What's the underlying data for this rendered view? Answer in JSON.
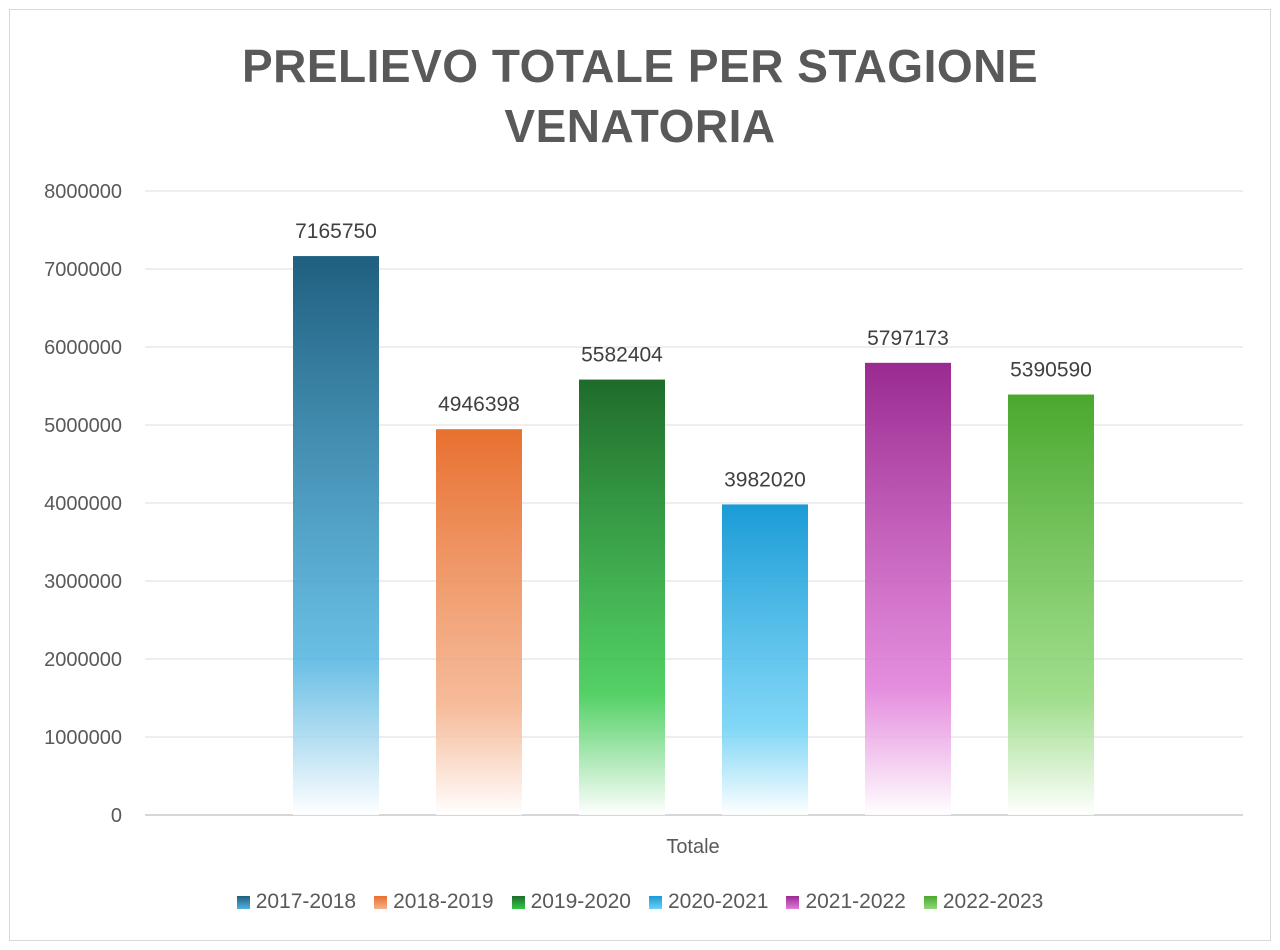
{
  "chart_data": {
    "type": "bar",
    "title": "PRELIEVO TOTALE PER STAGIONE VENATORIA",
    "title_lines": [
      "PRELIEVO TOTALE PER STAGIONE",
      "VENATORIA"
    ],
    "categories": [
      "Totale"
    ],
    "xlabel": "Totale",
    "ylabel": "",
    "ylim": [
      0,
      8000000
    ],
    "yticks": [
      0,
      1000000,
      2000000,
      3000000,
      4000000,
      5000000,
      6000000,
      7000000,
      8000000
    ],
    "ytick_labels": [
      "0",
      "1000000",
      "2000000",
      "3000000",
      "4000000",
      "5000000",
      "6000000",
      "7000000",
      "8000000"
    ],
    "grid": true,
    "legend_position": "bottom",
    "series": [
      {
        "name": "2017-2018",
        "values": [
          7165750
        ],
        "label": "7165750",
        "color": "#1f5f7f",
        "color_bottom": "#4fb3e0"
      },
      {
        "name": "2018-2019",
        "values": [
          4946398
        ],
        "label": "4946398",
        "color": "#e8702f",
        "color_bottom": "#f5b08a"
      },
      {
        "name": "2019-2020",
        "values": [
          5582404
        ],
        "label": "5582404",
        "color": "#1f6b2a",
        "color_bottom": "#35c84a"
      },
      {
        "name": "2020-2021",
        "values": [
          3982020
        ],
        "label": "3982020",
        "color": "#1a9bd6",
        "color_bottom": "#6cd0f5"
      },
      {
        "name": "2021-2022",
        "values": [
          5797173
        ],
        "label": "5797173",
        "color": "#9a2a90",
        "color_bottom": "#e07ad8"
      },
      {
        "name": "2022-2023",
        "values": [
          5390590
        ],
        "label": "5390590",
        "color": "#4aa82e",
        "color_bottom": "#8fd878"
      }
    ]
  }
}
